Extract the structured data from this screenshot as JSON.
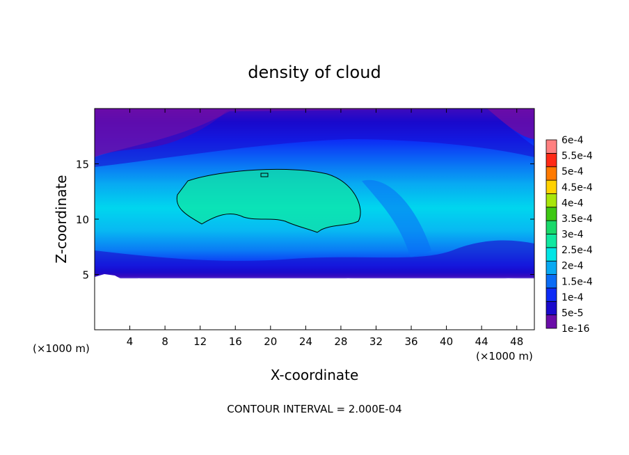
{
  "chart_data": {
    "type": "heatmap",
    "title": "density of cloud",
    "xlabel": "X-coordinate",
    "ylabel": "Z-coordinate",
    "x_unit": "(×1000 m)",
    "z_unit": "(×1000 m)",
    "footer": "CONTOUR INTERVAL = 2.000E-04",
    "xlim": [
      0,
      50
    ],
    "ylim": [
      0,
      20
    ],
    "x_ticks": [
      4,
      8,
      12,
      16,
      20,
      24,
      28,
      32,
      36,
      40,
      44,
      48
    ],
    "y_ticks": [
      5,
      10,
      15
    ],
    "contour_interval": 0.0002,
    "contour_level": 0.0002,
    "colorbar": {
      "levels": [
        "1e-16",
        "5e-5",
        "1e-4",
        "1.5e-4",
        "2e-4",
        "2.5e-4",
        "3e-4",
        "3.5e-4",
        "4e-4",
        "4.5e-4",
        "5e-4",
        "5.5e-4",
        "6e-4"
      ],
      "colors": [
        "#6a0da8",
        "#1a0acc",
        "#0d2bf5",
        "#0a6cf5",
        "#08a9f2",
        "#00e5e5",
        "#10e8a0",
        "#19d96a",
        "#3ec813",
        "#a8e60a",
        "#ffd200",
        "#ff7a00",
        "#ff2a16",
        "#ff8080"
      ]
    },
    "regions": {
      "cloud_base_z": 4.5,
      "cloud_top_z": 20,
      "core": {
        "x_range": [
          9,
          31
        ],
        "z_range": [
          8.8,
          14.8
        ],
        "density": "≥ 2e-4"
      }
    }
  }
}
